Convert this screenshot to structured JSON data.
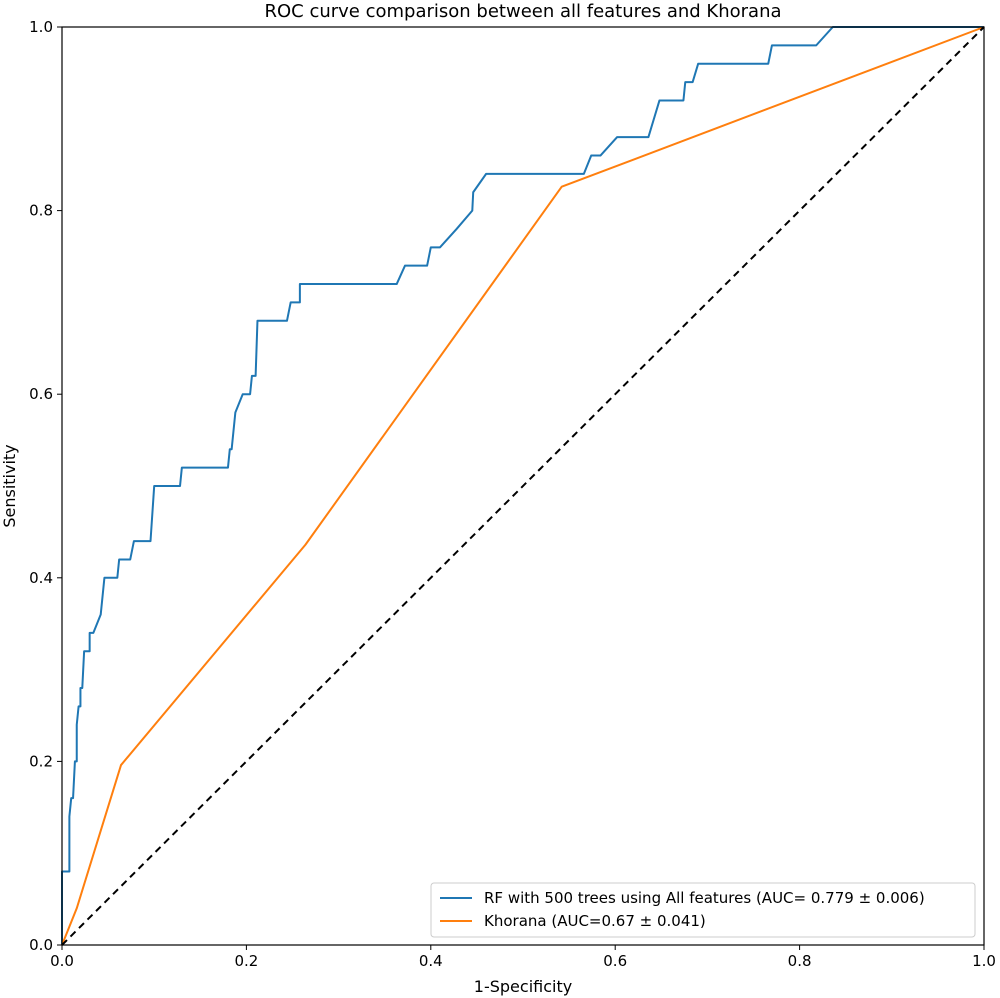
{
  "chart_data": {
    "type": "line",
    "title": "ROC curve comparison between all features and Khorana",
    "xlabel": "1-Specificity",
    "ylabel": "Sensitivity",
    "xlim": [
      0.0,
      1.0
    ],
    "ylim": [
      0.0,
      1.0
    ],
    "x_ticks": [
      "0.0",
      "0.2",
      "0.4",
      "0.6",
      "0.8",
      "1.0"
    ],
    "y_ticks": [
      "0.0",
      "0.2",
      "0.4",
      "0.6",
      "0.8",
      "1.0"
    ],
    "grid": false,
    "legend_position": "lower-right",
    "series": [
      {
        "name": "RF with 500 trees using All features (AUC= 0.779 ± 0.006)",
        "color": "#1f77b4",
        "style": "solid",
        "x": [
          0.0,
          0.0,
          0.008,
          0.008,
          0.01,
          0.012,
          0.014,
          0.016,
          0.016,
          0.018,
          0.02,
          0.02,
          0.022,
          0.024,
          0.026,
          0.026,
          0.028,
          0.03,
          0.03,
          0.034,
          0.034,
          0.042,
          0.046,
          0.048,
          0.06,
          0.062,
          0.074,
          0.078,
          0.082,
          0.096,
          0.1,
          0.106,
          0.128,
          0.13,
          0.18,
          0.182,
          0.184,
          0.188,
          0.196,
          0.204,
          0.206,
          0.21,
          0.212,
          0.222,
          0.244,
          0.248,
          0.258,
          0.258,
          0.268,
          0.363,
          0.372,
          0.396,
          0.4,
          0.41,
          0.428,
          0.445,
          0.446,
          0.46,
          0.566,
          0.574,
          0.584,
          0.602,
          0.636,
          0.648,
          0.674,
          0.676,
          0.684,
          0.69,
          0.766,
          0.77,
          0.818,
          0.836,
          1.0
        ],
        "y": [
          0.0,
          0.08,
          0.08,
          0.14,
          0.16,
          0.16,
          0.2,
          0.2,
          0.24,
          0.26,
          0.26,
          0.28,
          0.28,
          0.32,
          0.32,
          0.32,
          0.32,
          0.32,
          0.34,
          0.34,
          0.34,
          0.36,
          0.4,
          0.4,
          0.4,
          0.42,
          0.42,
          0.44,
          0.44,
          0.44,
          0.5,
          0.5,
          0.5,
          0.52,
          0.52,
          0.54,
          0.54,
          0.58,
          0.6,
          0.6,
          0.62,
          0.62,
          0.68,
          0.68,
          0.68,
          0.7,
          0.7,
          0.72,
          0.72,
          0.72,
          0.74,
          0.74,
          0.76,
          0.76,
          0.78,
          0.8,
          0.82,
          0.84,
          0.84,
          0.86,
          0.86,
          0.88,
          0.88,
          0.92,
          0.92,
          0.94,
          0.94,
          0.96,
          0.96,
          0.98,
          0.98,
          1.0,
          1.0
        ]
      },
      {
        "name": "Khorana  (AUC=0.67 ± 0.041)",
        "color": "#ff7f0e",
        "style": "solid",
        "x": [
          0.0,
          0.016,
          0.064,
          0.264,
          0.542,
          1.0
        ],
        "y": [
          0.0,
          0.04,
          0.196,
          0.436,
          0.826,
          1.0
        ]
      },
      {
        "name": "",
        "color": "#000000",
        "style": "dashed",
        "x": [
          0.0,
          1.0
        ],
        "y": [
          0.0,
          1.0
        ]
      }
    ]
  }
}
